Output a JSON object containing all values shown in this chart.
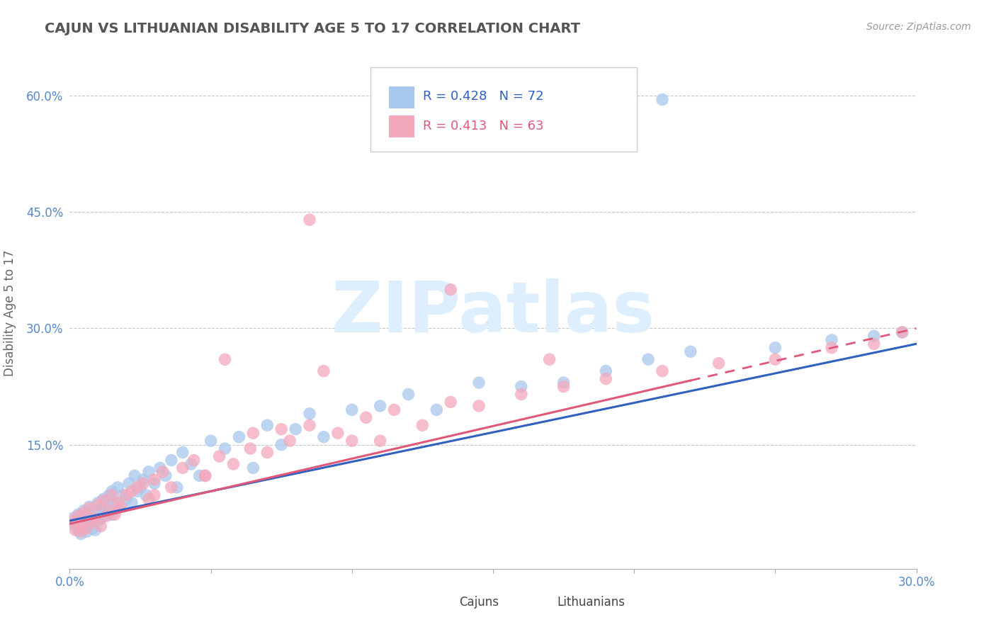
{
  "title": "CAJUN VS LITHUANIAN DISABILITY AGE 5 TO 17 CORRELATION CHART",
  "source": "Source: ZipAtlas.com",
  "ylabel": "Disability Age 5 to 17",
  "xlim": [
    0.0,
    0.3
  ],
  "ylim": [
    -0.01,
    0.65
  ],
  "xticks": [
    0.0,
    0.05,
    0.1,
    0.15,
    0.2,
    0.25,
    0.3
  ],
  "xticklabels": [
    "0.0%",
    "",
    "",
    "",
    "",
    "",
    "30.0%"
  ],
  "yticks": [
    0.0,
    0.15,
    0.3,
    0.45,
    0.6
  ],
  "yticklabels": [
    "",
    "15.0%",
    "30.0%",
    "45.0%",
    "60.0%"
  ],
  "cajun_R": 0.428,
  "cajun_N": 72,
  "lithuanian_R": 0.413,
  "lithuanian_N": 63,
  "cajun_color": "#a8c8ee",
  "lithuanian_color": "#f4a8bc",
  "cajun_line_color": "#3060c0",
  "lithuanian_line_color": "#e05878",
  "grid_color": "#c8c8c8",
  "axis_label_color": "#5588cc",
  "watermark_color": "#ddeeff",
  "cajun_x": [
    0.001,
    0.002,
    0.002,
    0.003,
    0.003,
    0.004,
    0.004,
    0.005,
    0.005,
    0.006,
    0.006,
    0.007,
    0.007,
    0.008,
    0.008,
    0.009,
    0.009,
    0.01,
    0.01,
    0.011,
    0.011,
    0.012,
    0.012,
    0.013,
    0.014,
    0.015,
    0.015,
    0.016,
    0.017,
    0.018,
    0.019,
    0.02,
    0.021,
    0.022,
    0.023,
    0.024,
    0.025,
    0.026,
    0.027,
    0.028,
    0.03,
    0.032,
    0.034,
    0.036,
    0.038,
    0.04,
    0.043,
    0.046,
    0.05,
    0.055,
    0.06,
    0.065,
    0.07,
    0.075,
    0.08,
    0.085,
    0.09,
    0.1,
    0.11,
    0.12,
    0.13,
    0.145,
    0.16,
    0.175,
    0.19,
    0.205,
    0.22,
    0.25,
    0.27,
    0.285,
    0.295,
    0.21
  ],
  "cajun_y": [
    0.055,
    0.05,
    0.045,
    0.06,
    0.04,
    0.055,
    0.035,
    0.065,
    0.045,
    0.055,
    0.038,
    0.07,
    0.048,
    0.055,
    0.042,
    0.065,
    0.04,
    0.075,
    0.052,
    0.068,
    0.055,
    0.08,
    0.058,
    0.072,
    0.085,
    0.09,
    0.06,
    0.075,
    0.095,
    0.07,
    0.085,
    0.08,
    0.1,
    0.075,
    0.11,
    0.09,
    0.095,
    0.105,
    0.085,
    0.115,
    0.1,
    0.12,
    0.11,
    0.13,
    0.095,
    0.14,
    0.125,
    0.11,
    0.155,
    0.145,
    0.16,
    0.12,
    0.175,
    0.15,
    0.17,
    0.19,
    0.16,
    0.195,
    0.2,
    0.215,
    0.195,
    0.23,
    0.225,
    0.23,
    0.245,
    0.26,
    0.27,
    0.275,
    0.285,
    0.29,
    0.295,
    0.595
  ],
  "lith_x": [
    0.001,
    0.002,
    0.002,
    0.003,
    0.004,
    0.004,
    0.005,
    0.006,
    0.007,
    0.008,
    0.009,
    0.01,
    0.011,
    0.012,
    0.013,
    0.014,
    0.015,
    0.016,
    0.017,
    0.018,
    0.02,
    0.022,
    0.024,
    0.026,
    0.028,
    0.03,
    0.033,
    0.036,
    0.04,
    0.044,
    0.048,
    0.053,
    0.058,
    0.064,
    0.07,
    0.078,
    0.085,
    0.095,
    0.105,
    0.115,
    0.125,
    0.135,
    0.145,
    0.16,
    0.175,
    0.19,
    0.21,
    0.23,
    0.25,
    0.27,
    0.285,
    0.295,
    0.055,
    0.09,
    0.135,
    0.17,
    0.085,
    0.075,
    0.1,
    0.11,
    0.065,
    0.048,
    0.03
  ],
  "lith_y": [
    0.052,
    0.048,
    0.04,
    0.058,
    0.045,
    0.038,
    0.062,
    0.042,
    0.068,
    0.05,
    0.055,
    0.072,
    0.045,
    0.078,
    0.058,
    0.065,
    0.085,
    0.06,
    0.075,
    0.07,
    0.085,
    0.09,
    0.095,
    0.1,
    0.08,
    0.105,
    0.115,
    0.095,
    0.12,
    0.13,
    0.11,
    0.135,
    0.125,
    0.145,
    0.14,
    0.155,
    0.175,
    0.165,
    0.185,
    0.195,
    0.175,
    0.205,
    0.2,
    0.215,
    0.225,
    0.235,
    0.245,
    0.255,
    0.26,
    0.275,
    0.28,
    0.295,
    0.26,
    0.245,
    0.35,
    0.26,
    0.44,
    0.17,
    0.155,
    0.155,
    0.165,
    0.11,
    0.085
  ],
  "cajun_trend": [
    0.052,
    0.28
  ],
  "lith_trend": [
    0.048,
    0.3
  ],
  "trend_x": [
    0.0,
    0.3
  ]
}
